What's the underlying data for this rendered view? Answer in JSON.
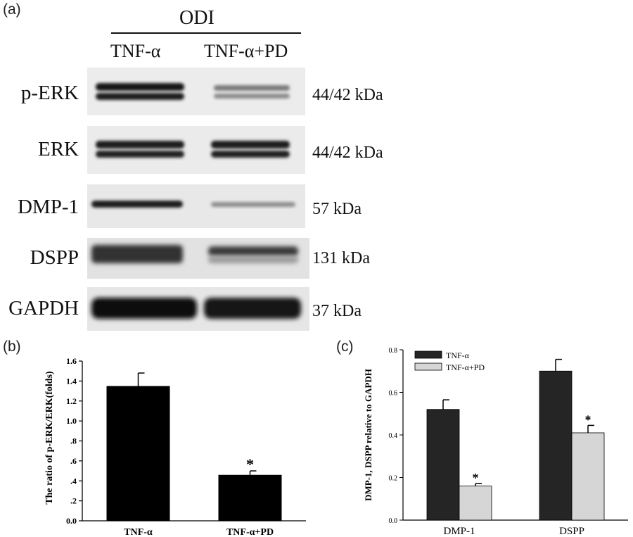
{
  "panel_a": {
    "label": "(a)",
    "group_label": "ODI",
    "lane_labels": [
      "TNF-α",
      "TNF-α+PD"
    ],
    "rows": [
      {
        "protein": "p-ERK",
        "size": "44/42 kDa"
      },
      {
        "protein": "ERK",
        "size": "44/42 kDa"
      },
      {
        "protein": "DMP-1",
        "size": "57 kDa"
      },
      {
        "protein": "DSPP",
        "size": "131 kDa"
      },
      {
        "protein": "GAPDH",
        "size": "37 kDa"
      }
    ],
    "band_intensity": {
      "p-ERK": [
        1.0,
        0.45
      ],
      "ERK": [
        1.0,
        1.0
      ],
      "DMP-1": [
        1.0,
        0.3
      ],
      "DSPP": [
        1.0,
        0.85
      ],
      "GAPDH": [
        1.0,
        1.0
      ]
    }
  },
  "chart_data": [
    {
      "panel": "(b)",
      "type": "bar",
      "categories": [
        "TNF-α",
        "TNF-α+PD"
      ],
      "values": [
        1.35,
        0.46
      ],
      "errors": [
        0.13,
        0.04
      ],
      "significance": [
        "",
        "*"
      ],
      "ylabel": "The ratio of p-ERK/ERK(folds)",
      "xlabel": "",
      "ylim": [
        0,
        1.6
      ],
      "yticks": [
        "0.0",
        ".2",
        ".4",
        ".6",
        ".8",
        "1.0",
        "1.2",
        "1.4",
        "1.6"
      ],
      "bar_color": "#000000"
    },
    {
      "panel": "(c)",
      "type": "bar",
      "categories": [
        "DMP-1",
        "DSPP"
      ],
      "series": [
        {
          "name": "TNF-α",
          "values": [
            0.52,
            0.7
          ],
          "errors": [
            0.045,
            0.055
          ],
          "color": "#252525",
          "significance": [
            "",
            ""
          ]
        },
        {
          "name": "TNF-α+PD",
          "values": [
            0.16,
            0.41
          ],
          "errors": [
            0.012,
            0.035
          ],
          "color": "#d6d6d6",
          "significance": [
            "*",
            "*"
          ]
        }
      ],
      "ylabel": "DMP-1, DSPP relative to GAPDH",
      "xlabel": "",
      "ylim": [
        0,
        0.8
      ],
      "yticks": [
        "0.0",
        "0.2",
        "0.4",
        "0.6",
        "0.8"
      ],
      "legend_position": "top-left"
    }
  ]
}
